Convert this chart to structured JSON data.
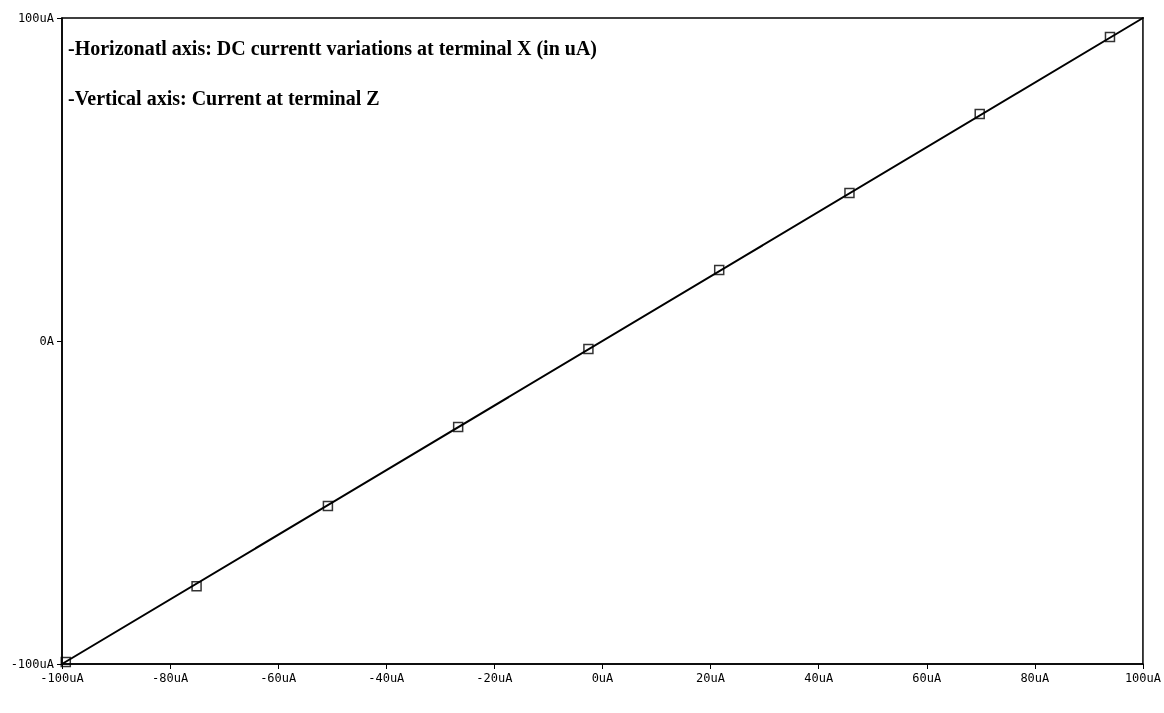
{
  "chart_data": {
    "type": "line",
    "annotations": [
      "-Horizonatl axis: DC currentt variations at terminal X (in uA)",
      "-Vertical axis: Current at terminal Z"
    ],
    "series": [
      {
        "color": "#000000",
        "marker": "none",
        "x": [
          -100,
          100
        ],
        "values": [
          -100,
          100
        ]
      },
      {
        "type": "scatter",
        "color": "#000000",
        "marker": "square",
        "x": [
          -99.3,
          -75.1,
          -50.8,
          -26.7,
          -2.6,
          21.6,
          45.7,
          69.8,
          93.9
        ],
        "values": [
          -99.4,
          -75.9,
          -51.1,
          -26.6,
          -2.5,
          22,
          45.8,
          70.3,
          94.1
        ]
      }
    ],
    "xlim": [
      -100,
      100
    ],
    "xticks": [
      {
        "value": -100,
        "label": "-100uA"
      },
      {
        "value": -80,
        "label": "-80uA"
      },
      {
        "value": -60,
        "label": "-60uA"
      },
      {
        "value": -40,
        "label": "-40uA"
      },
      {
        "value": -20,
        "label": "-20uA"
      },
      {
        "value": 0,
        "label": "0uA"
      },
      {
        "value": 20,
        "label": "20uA"
      },
      {
        "value": 40,
        "label": "40uA"
      },
      {
        "value": 60,
        "label": "60uA"
      },
      {
        "value": 80,
        "label": "80uA"
      },
      {
        "value": 100,
        "label": "100uA"
      }
    ],
    "ylim": [
      -100,
      100
    ],
    "yticks": [
      {
        "value": -100,
        "label": "-100uA"
      },
      {
        "value": 0,
        "label": "0A"
      },
      {
        "value": 100,
        "label": "100uA"
      }
    ],
    "grid": false
  }
}
